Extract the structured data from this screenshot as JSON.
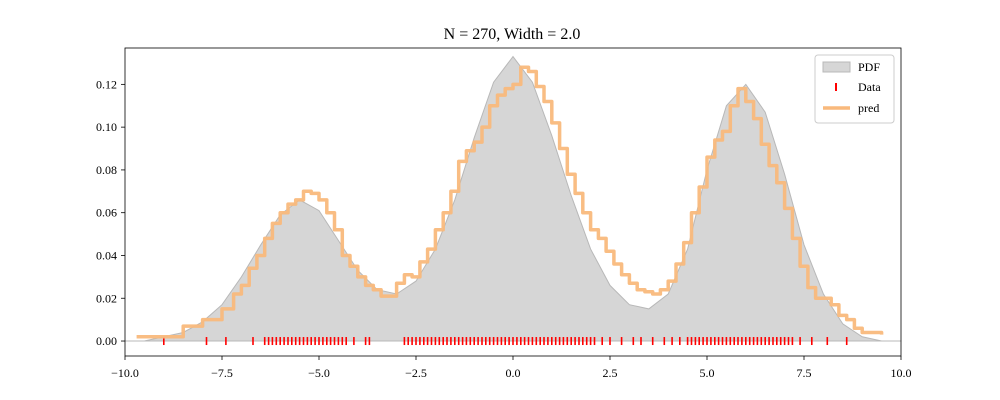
{
  "chart_data": {
    "type": "area",
    "title": "N = 270, Width = 2.0",
    "xlabel": "",
    "ylabel": "",
    "xlim": [
      -10.0,
      10.0
    ],
    "ylim": [
      -0.007,
      0.137
    ],
    "xticks": [
      -10.0,
      -7.5,
      -5.0,
      -2.5,
      0.0,
      2.5,
      5.0,
      7.5,
      10.0
    ],
    "xtick_labels": [
      "−10.0",
      "−7.5",
      "−5.0",
      "−2.5",
      "0.0",
      "2.5",
      "5.0",
      "7.5",
      "10.0"
    ],
    "yticks": [
      0.0,
      0.02,
      0.04,
      0.06,
      0.08,
      0.1,
      0.12
    ],
    "ytick_labels": [
      "0.00",
      "0.02",
      "0.04",
      "0.06",
      "0.08",
      "0.10",
      "0.12"
    ],
    "grid": false,
    "legend": {
      "placement": "top-right",
      "entries": [
        "PDF",
        "Data",
        "pred"
      ]
    },
    "colors": {
      "pdf_fill": "#d6d6d6",
      "pdf_edge": "#b8b8b8",
      "data": "#ff0000",
      "pred": "#f9b97c"
    },
    "pdf": {
      "name": "PDF",
      "x": [
        -10.0,
        -9.5,
        -9.0,
        -8.5,
        -8.0,
        -7.5,
        -7.0,
        -6.5,
        -6.0,
        -5.5,
        -5.0,
        -4.5,
        -4.0,
        -3.5,
        -3.0,
        -2.5,
        -2.0,
        -1.5,
        -1.0,
        -0.5,
        0.0,
        0.5,
        1.0,
        1.5,
        2.0,
        2.5,
        3.0,
        3.5,
        4.0,
        4.5,
        5.0,
        5.5,
        6.0,
        6.5,
        7.0,
        7.5,
        8.0,
        8.5,
        9.0,
        9.5,
        10.0
      ],
      "y": [
        0.0,
        0.0,
        0.002,
        0.004,
        0.009,
        0.017,
        0.03,
        0.045,
        0.059,
        0.066,
        0.061,
        0.047,
        0.033,
        0.024,
        0.022,
        0.028,
        0.043,
        0.066,
        0.095,
        0.121,
        0.133,
        0.121,
        0.096,
        0.068,
        0.043,
        0.026,
        0.017,
        0.015,
        0.022,
        0.043,
        0.08,
        0.11,
        0.12,
        0.107,
        0.078,
        0.045,
        0.022,
        0.008,
        0.002,
        0.0,
        0.0
      ]
    },
    "data_points": {
      "name": "Data",
      "x": [
        -9.0,
        -7.9,
        -7.4,
        -6.7,
        -6.4,
        -6.3,
        -6.2,
        -6.1,
        -6.0,
        -5.9,
        -5.8,
        -5.7,
        -5.6,
        -5.5,
        -5.4,
        -5.3,
        -5.2,
        -5.1,
        -5.0,
        -4.9,
        -4.8,
        -4.7,
        -4.6,
        -4.5,
        -4.4,
        -4.3,
        -4.1,
        -3.8,
        -3.7,
        -2.8,
        -2.7,
        -2.6,
        -2.5,
        -2.4,
        -2.3,
        -2.2,
        -2.1,
        -2.0,
        -1.9,
        -1.8,
        -1.7,
        -1.6,
        -1.5,
        -1.4,
        -1.3,
        -1.2,
        -1.1,
        -1.0,
        -0.9,
        -0.8,
        -0.7,
        -0.6,
        -0.5,
        -0.4,
        -0.3,
        -0.2,
        -0.1,
        0.0,
        0.1,
        0.2,
        0.3,
        0.4,
        0.5,
        0.6,
        0.7,
        0.8,
        0.9,
        1.0,
        1.1,
        1.2,
        1.3,
        1.4,
        1.5,
        1.6,
        1.7,
        1.8,
        1.9,
        2.0,
        2.1,
        2.3,
        2.5,
        2.8,
        3.1,
        3.3,
        3.6,
        3.9,
        4.1,
        4.3,
        4.5,
        4.6,
        4.7,
        4.8,
        4.9,
        5.0,
        5.1,
        5.2,
        5.3,
        5.4,
        5.5,
        5.6,
        5.7,
        5.8,
        5.9,
        6.0,
        6.1,
        6.2,
        6.3,
        6.4,
        6.5,
        6.6,
        6.7,
        6.8,
        6.9,
        7.0,
        7.1,
        7.2,
        7.4,
        7.7,
        8.1,
        8.6
      ]
    },
    "pred": {
      "name": "pred",
      "x": [
        -9.7,
        -9.0,
        -8.5,
        -8.0,
        -7.5,
        -7.2,
        -7.0,
        -6.8,
        -6.6,
        -6.4,
        -6.2,
        -6.0,
        -5.8,
        -5.6,
        -5.4,
        -5.2,
        -5.0,
        -4.8,
        -4.6,
        -4.4,
        -4.2,
        -4.0,
        -3.8,
        -3.6,
        -3.4,
        -3.2,
        -3.0,
        -2.8,
        -2.6,
        -2.4,
        -2.2,
        -2.0,
        -1.8,
        -1.6,
        -1.4,
        -1.2,
        -1.0,
        -0.8,
        -0.6,
        -0.4,
        -0.2,
        0.0,
        0.2,
        0.4,
        0.6,
        0.8,
        1.0,
        1.2,
        1.4,
        1.6,
        1.8,
        2.0,
        2.2,
        2.4,
        2.6,
        2.8,
        3.0,
        3.2,
        3.4,
        3.6,
        3.8,
        4.0,
        4.2,
        4.4,
        4.6,
        4.8,
        5.0,
        5.2,
        5.4,
        5.6,
        5.8,
        6.0,
        6.2,
        6.4,
        6.6,
        6.8,
        7.0,
        7.2,
        7.4,
        7.6,
        7.8,
        8.0,
        8.2,
        8.4,
        8.6,
        8.8,
        9.0,
        9.5
      ],
      "y": [
        0.002,
        0.002,
        0.007,
        0.01,
        0.015,
        0.022,
        0.026,
        0.034,
        0.04,
        0.048,
        0.055,
        0.06,
        0.064,
        0.066,
        0.07,
        0.069,
        0.066,
        0.06,
        0.052,
        0.04,
        0.035,
        0.03,
        0.026,
        0.024,
        0.021,
        0.021,
        0.027,
        0.031,
        0.03,
        0.037,
        0.043,
        0.052,
        0.06,
        0.07,
        0.084,
        0.089,
        0.093,
        0.1,
        0.11,
        0.115,
        0.118,
        0.12,
        0.128,
        0.126,
        0.119,
        0.112,
        0.102,
        0.09,
        0.078,
        0.069,
        0.06,
        0.052,
        0.048,
        0.042,
        0.036,
        0.031,
        0.027,
        0.024,
        0.023,
        0.022,
        0.024,
        0.028,
        0.036,
        0.046,
        0.06,
        0.072,
        0.086,
        0.094,
        0.098,
        0.11,
        0.118,
        0.112,
        0.104,
        0.092,
        0.082,
        0.074,
        0.062,
        0.048,
        0.035,
        0.025,
        0.02,
        0.02,
        0.017,
        0.012,
        0.01,
        0.006,
        0.004,
        0.003
      ]
    }
  }
}
